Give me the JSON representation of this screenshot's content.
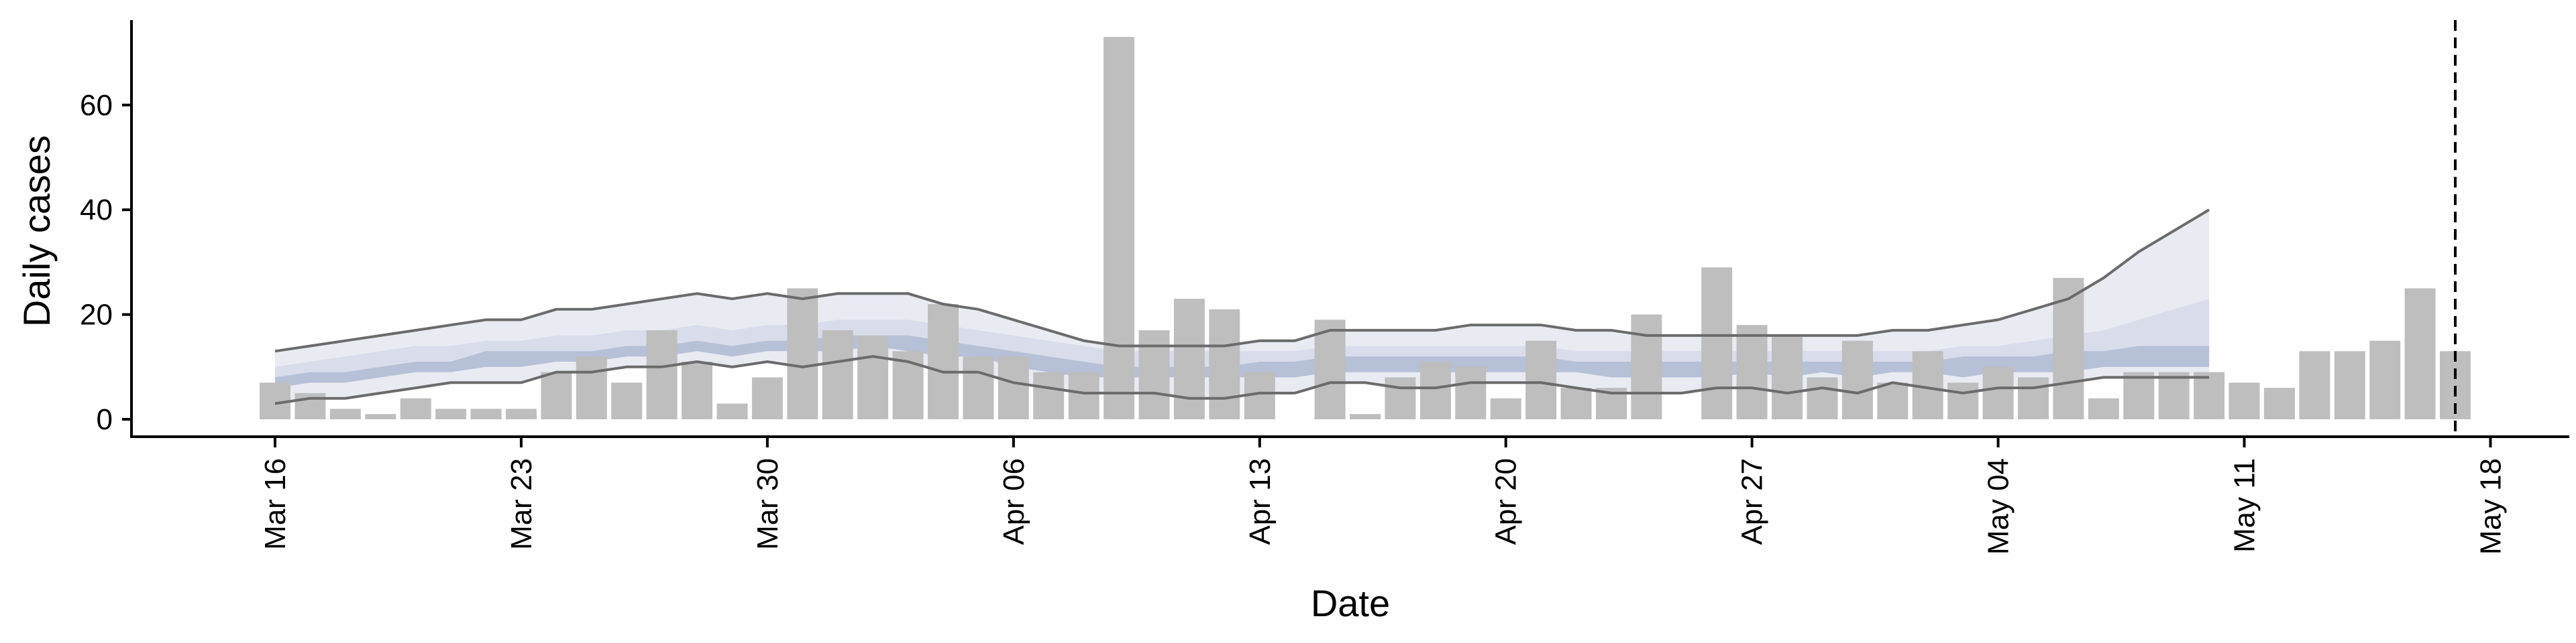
{
  "chart_data": {
    "type": "bar",
    "xlabel": "Date",
    "ylabel": "Daily cases",
    "ylim": [
      0,
      75
    ],
    "yticks": [
      0,
      20,
      40,
      60
    ],
    "x_dates": [
      "Mar 16",
      "Mar 17",
      "Mar 18",
      "Mar 19",
      "Mar 20",
      "Mar 21",
      "Mar 22",
      "Mar 23",
      "Mar 24",
      "Mar 25",
      "Mar 26",
      "Mar 27",
      "Mar 28",
      "Mar 29",
      "Mar 30",
      "Mar 31",
      "Apr 01",
      "Apr 02",
      "Apr 03",
      "Apr 04",
      "Apr 05",
      "Apr 06",
      "Apr 07",
      "Apr 08",
      "Apr 09",
      "Apr 10",
      "Apr 11",
      "Apr 12",
      "Apr 13",
      "Apr 14",
      "Apr 15",
      "Apr 16",
      "Apr 17",
      "Apr 18",
      "Apr 19",
      "Apr 20",
      "Apr 21",
      "Apr 22",
      "Apr 23",
      "Apr 24",
      "Apr 25",
      "Apr 26",
      "Apr 27",
      "Apr 28",
      "Apr 29",
      "Apr 30",
      "May 01",
      "May 02",
      "May 03",
      "May 04",
      "May 05",
      "May 06",
      "May 07",
      "May 08",
      "May 09",
      "May 10",
      "May 11",
      "May 12",
      "May 13",
      "May 14",
      "May 15",
      "May 16",
      "May 17"
    ],
    "xtick_labels": [
      "Mar 16",
      "Mar 23",
      "Mar 30",
      "Apr 06",
      "Apr 13",
      "Apr 20",
      "Apr 27",
      "May 04",
      "May 11",
      "May 18"
    ],
    "bar_values": [
      7,
      5,
      2,
      1,
      4,
      2,
      2,
      2,
      9,
      12,
      7,
      17,
      11,
      3,
      8,
      25,
      17,
      16,
      13,
      22,
      12,
      12,
      9,
      9,
      73,
      17,
      23,
      21,
      9,
      0,
      19,
      1,
      8,
      11,
      10,
      4,
      15,
      6,
      6,
      20,
      0,
      29,
      18,
      16,
      8,
      15,
      7,
      13,
      7,
      10,
      8,
      27,
      4,
      9,
      9,
      9,
      7,
      6,
      13,
      13,
      15,
      25,
      13
    ],
    "bar_color": "#bebebe",
    "band_dates": [
      "Mar 16",
      "Mar 17",
      "Mar 18",
      "Mar 19",
      "Mar 20",
      "Mar 21",
      "Mar 22",
      "Mar 23",
      "Mar 24",
      "Mar 25",
      "Mar 26",
      "Mar 27",
      "Mar 28",
      "Mar 29",
      "Mar 30",
      "Mar 31",
      "Apr 01",
      "Apr 02",
      "Apr 03",
      "Apr 04",
      "Apr 05",
      "Apr 06",
      "Apr 07",
      "Apr 08",
      "Apr 09",
      "Apr 10",
      "Apr 11",
      "Apr 12",
      "Apr 13",
      "Apr 14",
      "Apr 15",
      "Apr 16",
      "Apr 17",
      "Apr 18",
      "Apr 19",
      "Apr 20",
      "Apr 21",
      "Apr 22",
      "Apr 23",
      "Apr 24",
      "Apr 25",
      "Apr 26",
      "Apr 27",
      "Apr 28",
      "Apr 29",
      "Apr 30",
      "May 01",
      "May 02",
      "May 03",
      "May 04",
      "May 05",
      "May 06",
      "May 07",
      "May 08",
      "May 09",
      "May 10"
    ],
    "outer_upper": [
      13,
      14,
      15,
      16,
      17,
      18,
      19,
      19,
      21,
      21,
      22,
      23,
      24,
      23,
      24,
      23,
      24,
      24,
      24,
      22,
      21,
      19,
      17,
      15,
      14,
      14,
      14,
      14,
      15,
      15,
      17,
      17,
      17,
      17,
      18,
      18,
      18,
      17,
      17,
      16,
      16,
      16,
      16,
      16,
      16,
      16,
      17,
      17,
      18,
      19,
      21,
      23,
      27,
      32,
      36,
      40
    ],
    "outer_lower": [
      3,
      4,
      4,
      5,
      6,
      7,
      7,
      7,
      9,
      9,
      10,
      10,
      11,
      10,
      11,
      10,
      11,
      12,
      11,
      9,
      9,
      7,
      6,
      5,
      5,
      5,
      4,
      4,
      5,
      5,
      7,
      7,
      6,
      6,
      7,
      7,
      7,
      6,
      5,
      5,
      5,
      6,
      6,
      5,
      6,
      5,
      7,
      6,
      5,
      6,
      6,
      7,
      8,
      8,
      8,
      8
    ],
    "mid_upper": [
      10,
      11,
      12,
      13,
      14,
      14,
      15,
      15,
      16,
      16,
      17,
      17,
      18,
      17,
      18,
      18,
      19,
      19,
      19,
      18,
      17,
      16,
      15,
      14,
      13,
      13,
      13,
      13,
      13,
      13,
      14,
      14,
      14,
      14,
      14,
      14,
      14,
      13,
      13,
      13,
      13,
      13,
      13,
      13,
      13,
      13,
      13,
      13,
      14,
      14,
      15,
      16,
      17,
      19,
      21,
      23
    ],
    "mid_lower": [
      6,
      7,
      7,
      8,
      9,
      9,
      10,
      10,
      11,
      11,
      12,
      12,
      13,
      12,
      13,
      13,
      13,
      14,
      13,
      12,
      12,
      10,
      9,
      8,
      8,
      8,
      8,
      8,
      8,
      8,
      9,
      9,
      9,
      9,
      9,
      9,
      9,
      9,
      8,
      8,
      8,
      8,
      9,
      8,
      9,
      8,
      9,
      9,
      8,
      9,
      9,
      9,
      10,
      10,
      10,
      10
    ],
    "inner_upper": [
      8,
      9,
      9,
      10,
      11,
      11,
      13,
      13,
      13,
      13,
      14,
      14,
      15,
      14,
      15,
      15,
      16,
      16,
      16,
      15,
      14,
      13,
      12,
      11,
      10,
      10,
      10,
      10,
      11,
      11,
      12,
      12,
      12,
      12,
      12,
      12,
      12,
      11,
      11,
      11,
      11,
      11,
      11,
      11,
      11,
      11,
      11,
      11,
      12,
      12,
      12,
      13,
      13,
      14,
      14,
      14
    ],
    "inner_lower": [
      6,
      7,
      7,
      8,
      9,
      9,
      10,
      10,
      11,
      11,
      12,
      12,
      13,
      12,
      13,
      13,
      13,
      14,
      13,
      12,
      12,
      10,
      9,
      8,
      8,
      8,
      8,
      8,
      8,
      8,
      9,
      9,
      9,
      9,
      9,
      9,
      9,
      9,
      8,
      8,
      8,
      8,
      9,
      8,
      9,
      8,
      9,
      9,
      8,
      9,
      9,
      9,
      10,
      10,
      10,
      10
    ],
    "band_color_outer": "#e6e9f1",
    "band_color_mid": "#d7dcea",
    "band_color_inner": "#aab6cf",
    "line_color": "#6b6b6b",
    "dashed_line_date": "May 17",
    "grid": false
  }
}
